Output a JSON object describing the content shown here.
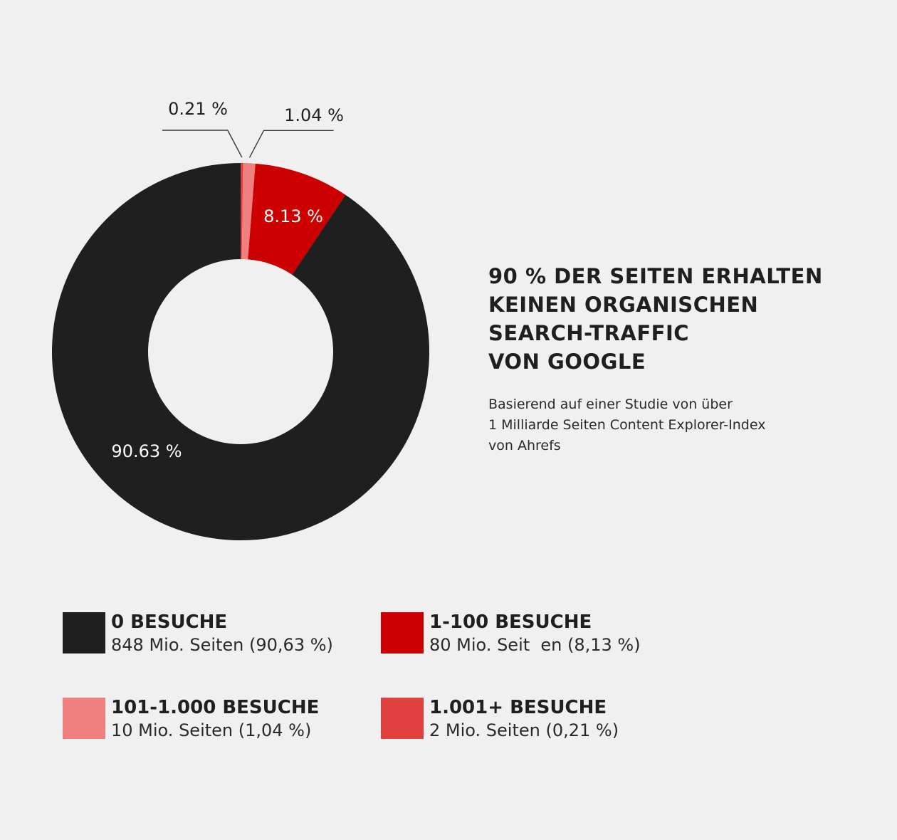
{
  "chart_data": {
    "type": "pie",
    "style": "donut",
    "title_lines": [
      "90 % DER SEITEN ERHALTEN",
      "KEINEN ORGANISCHEN",
      "SEARCH-TRAFFIC",
      "VON GOOGLE"
    ],
    "subtitle_lines": [
      "Basierend auf einer Studie von über",
      "1 Milliarde Seiten Content Explorer-Index",
      "von Ahrefs"
    ],
    "slices": [
      {
        "key": "s1",
        "value": 0.21,
        "label": "0.21 %",
        "color": "#e04040",
        "legend_title": "1.001+ BESUCHE",
        "legend_desc": "2 Mio. Seiten (0,21 %)"
      },
      {
        "key": "s2",
        "value": 1.04,
        "label": "1.04 %",
        "color": "#f08080",
        "legend_title": "101-1.000 BESUCHE",
        "legend_desc": "10 Mio. Seiten (1,04 %)"
      },
      {
        "key": "s3",
        "value": 8.13,
        "label": "8.13 %",
        "color": "#cc0000",
        "legend_title": "1-100 BESUCHE",
        "legend_desc": "80 Mio. Seit  en (8,13 %)"
      },
      {
        "key": "s4",
        "value": 90.63,
        "label": "90.63 %",
        "color": "#1f1f1f",
        "legend_title": "0 BESUCHE",
        "legend_desc": "848 Mio. Seiten (90,63 %)"
      }
    ],
    "legend_order": [
      "s4",
      "s3",
      "s2",
      "s1"
    ]
  }
}
